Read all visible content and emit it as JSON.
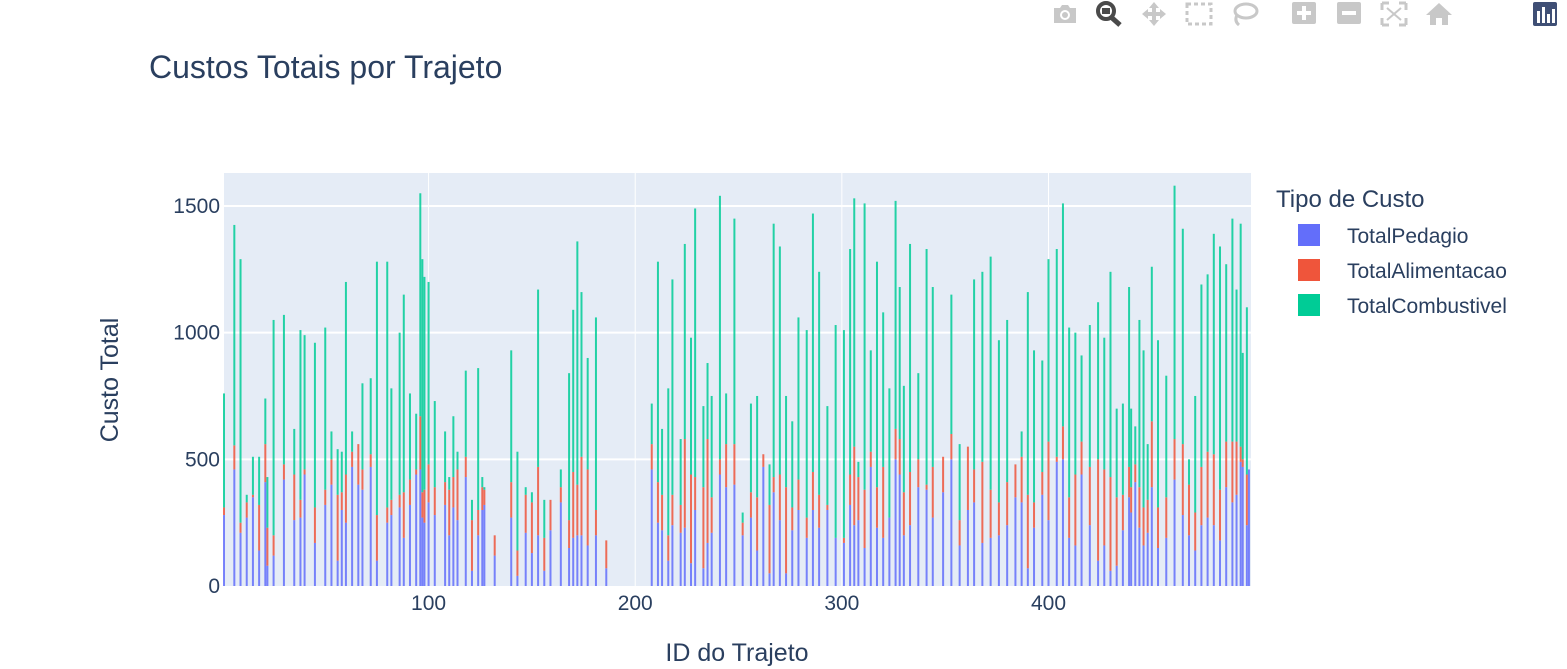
{
  "modebar": {
    "buttons": [
      {
        "name": "camera-icon",
        "icon": "camera"
      },
      {
        "name": "zoom-icon",
        "icon": "zoom"
      },
      {
        "name": "pan-icon",
        "icon": "pan"
      },
      {
        "name": "box-select-icon",
        "icon": "box-select"
      },
      {
        "name": "lasso-select-icon",
        "icon": "lasso"
      },
      {
        "name": "zoom-in-icon",
        "icon": "zoom-in"
      },
      {
        "name": "zoom-out-icon",
        "icon": "zoom-out"
      },
      {
        "name": "autoscale-icon",
        "icon": "autoscale"
      },
      {
        "name": "reset-axes-icon",
        "icon": "home"
      },
      {
        "name": "plotly-logo-icon",
        "icon": "plotly-logo"
      }
    ]
  },
  "chart_data": {
    "type": "bar",
    "barmode": "stack",
    "title": "Custos Totais por Trajeto",
    "xlabel": "ID do Trajeto",
    "ylabel": "Custo Total",
    "xlim": [
      1,
      498
    ],
    "ylim": [
      0,
      1630
    ],
    "xticks": [
      100,
      200,
      300,
      400
    ],
    "yticks": [
      0,
      500,
      1000,
      1500
    ],
    "grid": true,
    "legend": {
      "title": "Tipo de Custo",
      "placement": "right"
    },
    "series": [
      {
        "name": "TotalPedagio",
        "color": "#636efa"
      },
      {
        "name": "TotalAlimentacao",
        "color": "#ef553b"
      },
      {
        "name": "TotalCombustivel",
        "color": "#00cc96"
      }
    ],
    "bars": [
      [
        1,
        280,
        30,
        450
      ],
      [
        6,
        460,
        95,
        870
      ],
      [
        9,
        210,
        40,
        1040
      ],
      [
        12,
        270,
        60,
        30
      ],
      [
        15,
        350,
        10,
        150
      ],
      [
        18,
        140,
        180,
        190
      ],
      [
        21,
        410,
        150,
        180
      ],
      [
        22,
        80,
        150,
        200
      ],
      [
        25,
        120,
        80,
        850
      ],
      [
        30,
        420,
        60,
        590
      ],
      [
        35,
        260,
        180,
        180
      ],
      [
        38,
        270,
        70,
        670
      ],
      [
        40,
        440,
        20,
        530
      ],
      [
        45,
        170,
        140,
        650
      ],
      [
        50,
        320,
        60,
        640
      ],
      [
        53,
        400,
        100,
        110
      ],
      [
        56,
        100,
        260,
        180
      ],
      [
        58,
        300,
        70,
        160
      ],
      [
        60,
        250,
        190,
        760
      ],
      [
        63,
        470,
        60,
        80
      ],
      [
        66,
        400,
        160,
        0
      ],
      [
        68,
        380,
        80,
        340
      ],
      [
        72,
        470,
        50,
        300
      ],
      [
        75,
        100,
        180,
        1000
      ],
      [
        80,
        250,
        60,
        970
      ],
      [
        82,
        280,
        60,
        440
      ],
      [
        86,
        310,
        50,
        640
      ],
      [
        88,
        190,
        180,
        780
      ],
      [
        91,
        320,
        100,
        340
      ],
      [
        94,
        440,
        20,
        220
      ],
      [
        96,
        460,
        210,
        880
      ],
      [
        97,
        270,
        100,
        920
      ],
      [
        98,
        250,
        130,
        840
      ],
      [
        100,
        330,
        150,
        720
      ],
      [
        103,
        280,
        110,
        340
      ],
      [
        108,
        320,
        90,
        200
      ],
      [
        110,
        200,
        180,
        50
      ],
      [
        112,
        310,
        120,
        240
      ],
      [
        114,
        260,
        200,
        70
      ],
      [
        118,
        430,
        80,
        340
      ],
      [
        121,
        60,
        200,
        80
      ],
      [
        124,
        200,
        100,
        560
      ],
      [
        126,
        300,
        90,
        40
      ],
      [
        127,
        320,
        60,
        10
      ],
      [
        132,
        120,
        80,
        0
      ],
      [
        140,
        270,
        140,
        520
      ],
      [
        143,
        40,
        100,
        390
      ],
      [
        147,
        210,
        150,
        30
      ],
      [
        150,
        130,
        200,
        40
      ],
      [
        153,
        200,
        270,
        700
      ],
      [
        156,
        60,
        130,
        150
      ],
      [
        159,
        220,
        120,
        0
      ],
      [
        164,
        330,
        60,
        70
      ],
      [
        168,
        150,
        110,
        580
      ],
      [
        170,
        190,
        260,
        640
      ],
      [
        172,
        200,
        200,
        960
      ],
      [
        174,
        200,
        310,
        650
      ],
      [
        177,
        160,
        300,
        440
      ],
      [
        181,
        200,
        100,
        760
      ],
      [
        186,
        70,
        110,
        0
      ],
      [
        208,
        460,
        100,
        160
      ],
      [
        211,
        250,
        160,
        870
      ],
      [
        213,
        220,
        140,
        260
      ],
      [
        216,
        100,
        100,
        580
      ],
      [
        218,
        240,
        120,
        850
      ],
      [
        222,
        210,
        110,
        260
      ],
      [
        224,
        230,
        350,
        770
      ],
      [
        227,
        90,
        350,
        540
      ],
      [
        229,
        300,
        130,
        1060
      ],
      [
        233,
        70,
        320,
        320
      ],
      [
        235,
        170,
        410,
        300
      ],
      [
        237,
        210,
        140,
        400
      ],
      [
        241,
        440,
        60,
        1040
      ],
      [
        244,
        390,
        170,
        200
      ],
      [
        248,
        400,
        160,
        890
      ],
      [
        252,
        200,
        50,
        40
      ],
      [
        256,
        270,
        100,
        350
      ],
      [
        259,
        140,
        210,
        400
      ],
      [
        262,
        470,
        50,
        0
      ],
      [
        265,
        50,
        270,
        160
      ],
      [
        267,
        370,
        60,
        1000
      ],
      [
        270,
        260,
        180,
        900
      ],
      [
        273,
        50,
        340,
        360
      ],
      [
        276,
        220,
        90,
        340
      ],
      [
        279,
        300,
        120,
        640
      ],
      [
        283,
        190,
        80,
        740
      ],
      [
        286,
        300,
        150,
        1020
      ],
      [
        289,
        230,
        130,
        880
      ],
      [
        293,
        300,
        20,
        390
      ],
      [
        297,
        190,
        0,
        840
      ],
      [
        301,
        170,
        20,
        820
      ],
      [
        304,
        320,
        120,
        890
      ],
      [
        306,
        240,
        310,
        980
      ],
      [
        308,
        260,
        170,
        60
      ],
      [
        311,
        150,
        230,
        1130
      ],
      [
        314,
        470,
        60,
        400
      ],
      [
        317,
        230,
        160,
        890
      ],
      [
        320,
        190,
        280,
        610
      ],
      [
        323,
        270,
        0,
        510
      ],
      [
        326,
        500,
        120,
        900
      ],
      [
        328,
        440,
        140,
        600
      ],
      [
        330,
        200,
        170,
        420
      ],
      [
        333,
        240,
        210,
        900
      ],
      [
        337,
        390,
        110,
        340
      ],
      [
        341,
        380,
        20,
        930
      ],
      [
        344,
        270,
        200,
        710
      ],
      [
        349,
        370,
        140,
        0
      ],
      [
        353,
        500,
        100,
        550
      ],
      [
        357,
        160,
        100,
        300
      ],
      [
        361,
        300,
        250,
        0
      ],
      [
        364,
        330,
        130,
        750
      ],
      [
        368,
        170,
        320,
        750
      ],
      [
        372,
        190,
        190,
        920
      ],
      [
        376,
        200,
        130,
        640
      ],
      [
        380,
        240,
        170,
        640
      ],
      [
        384,
        350,
        130,
        0
      ],
      [
        387,
        330,
        180,
        100
      ],
      [
        390,
        70,
        290,
        800
      ],
      [
        393,
        230,
        100,
        600
      ],
      [
        397,
        360,
        90,
        440
      ],
      [
        400,
        260,
        310,
        720
      ],
      [
        404,
        490,
        20,
        820
      ],
      [
        407,
        500,
        130,
        880
      ],
      [
        410,
        190,
        160,
        670
      ],
      [
        413,
        160,
        280,
        560
      ],
      [
        416,
        440,
        130,
        340
      ],
      [
        420,
        240,
        230,
        560
      ],
      [
        424,
        100,
        400,
        620
      ],
      [
        427,
        160,
        300,
        520
      ],
      [
        430,
        60,
        370,
        810
      ],
      [
        433,
        80,
        270,
        350
      ],
      [
        436,
        220,
        140,
        360
      ],
      [
        439,
        350,
        120,
        710
      ],
      [
        440,
        290,
        100,
        310
      ],
      [
        442,
        410,
        70,
        150
      ],
      [
        444,
        230,
        160,
        660
      ],
      [
        446,
        160,
        150,
        620
      ],
      [
        448,
        210,
        130,
        220
      ],
      [
        450,
        390,
        260,
        610
      ],
      [
        453,
        150,
        160,
        660
      ],
      [
        457,
        190,
        160,
        480
      ],
      [
        461,
        420,
        160,
        1000
      ],
      [
        465,
        280,
        280,
        850
      ],
      [
        468,
        200,
        200,
        100
      ],
      [
        471,
        140,
        150,
        460
      ],
      [
        474,
        240,
        230,
        720
      ],
      [
        477,
        270,
        260,
        700
      ],
      [
        480,
        240,
        280,
        870
      ],
      [
        483,
        180,
        200,
        960
      ],
      [
        486,
        390,
        180,
        700
      ],
      [
        489,
        330,
        240,
        880
      ],
      [
        491,
        360,
        210,
        600
      ],
      [
        493,
        490,
        60,
        880
      ],
      [
        494,
        470,
        30,
        420
      ],
      [
        496,
        240,
        200,
        660
      ],
      [
        497,
        460,
        0,
        0
      ]
    ]
  }
}
